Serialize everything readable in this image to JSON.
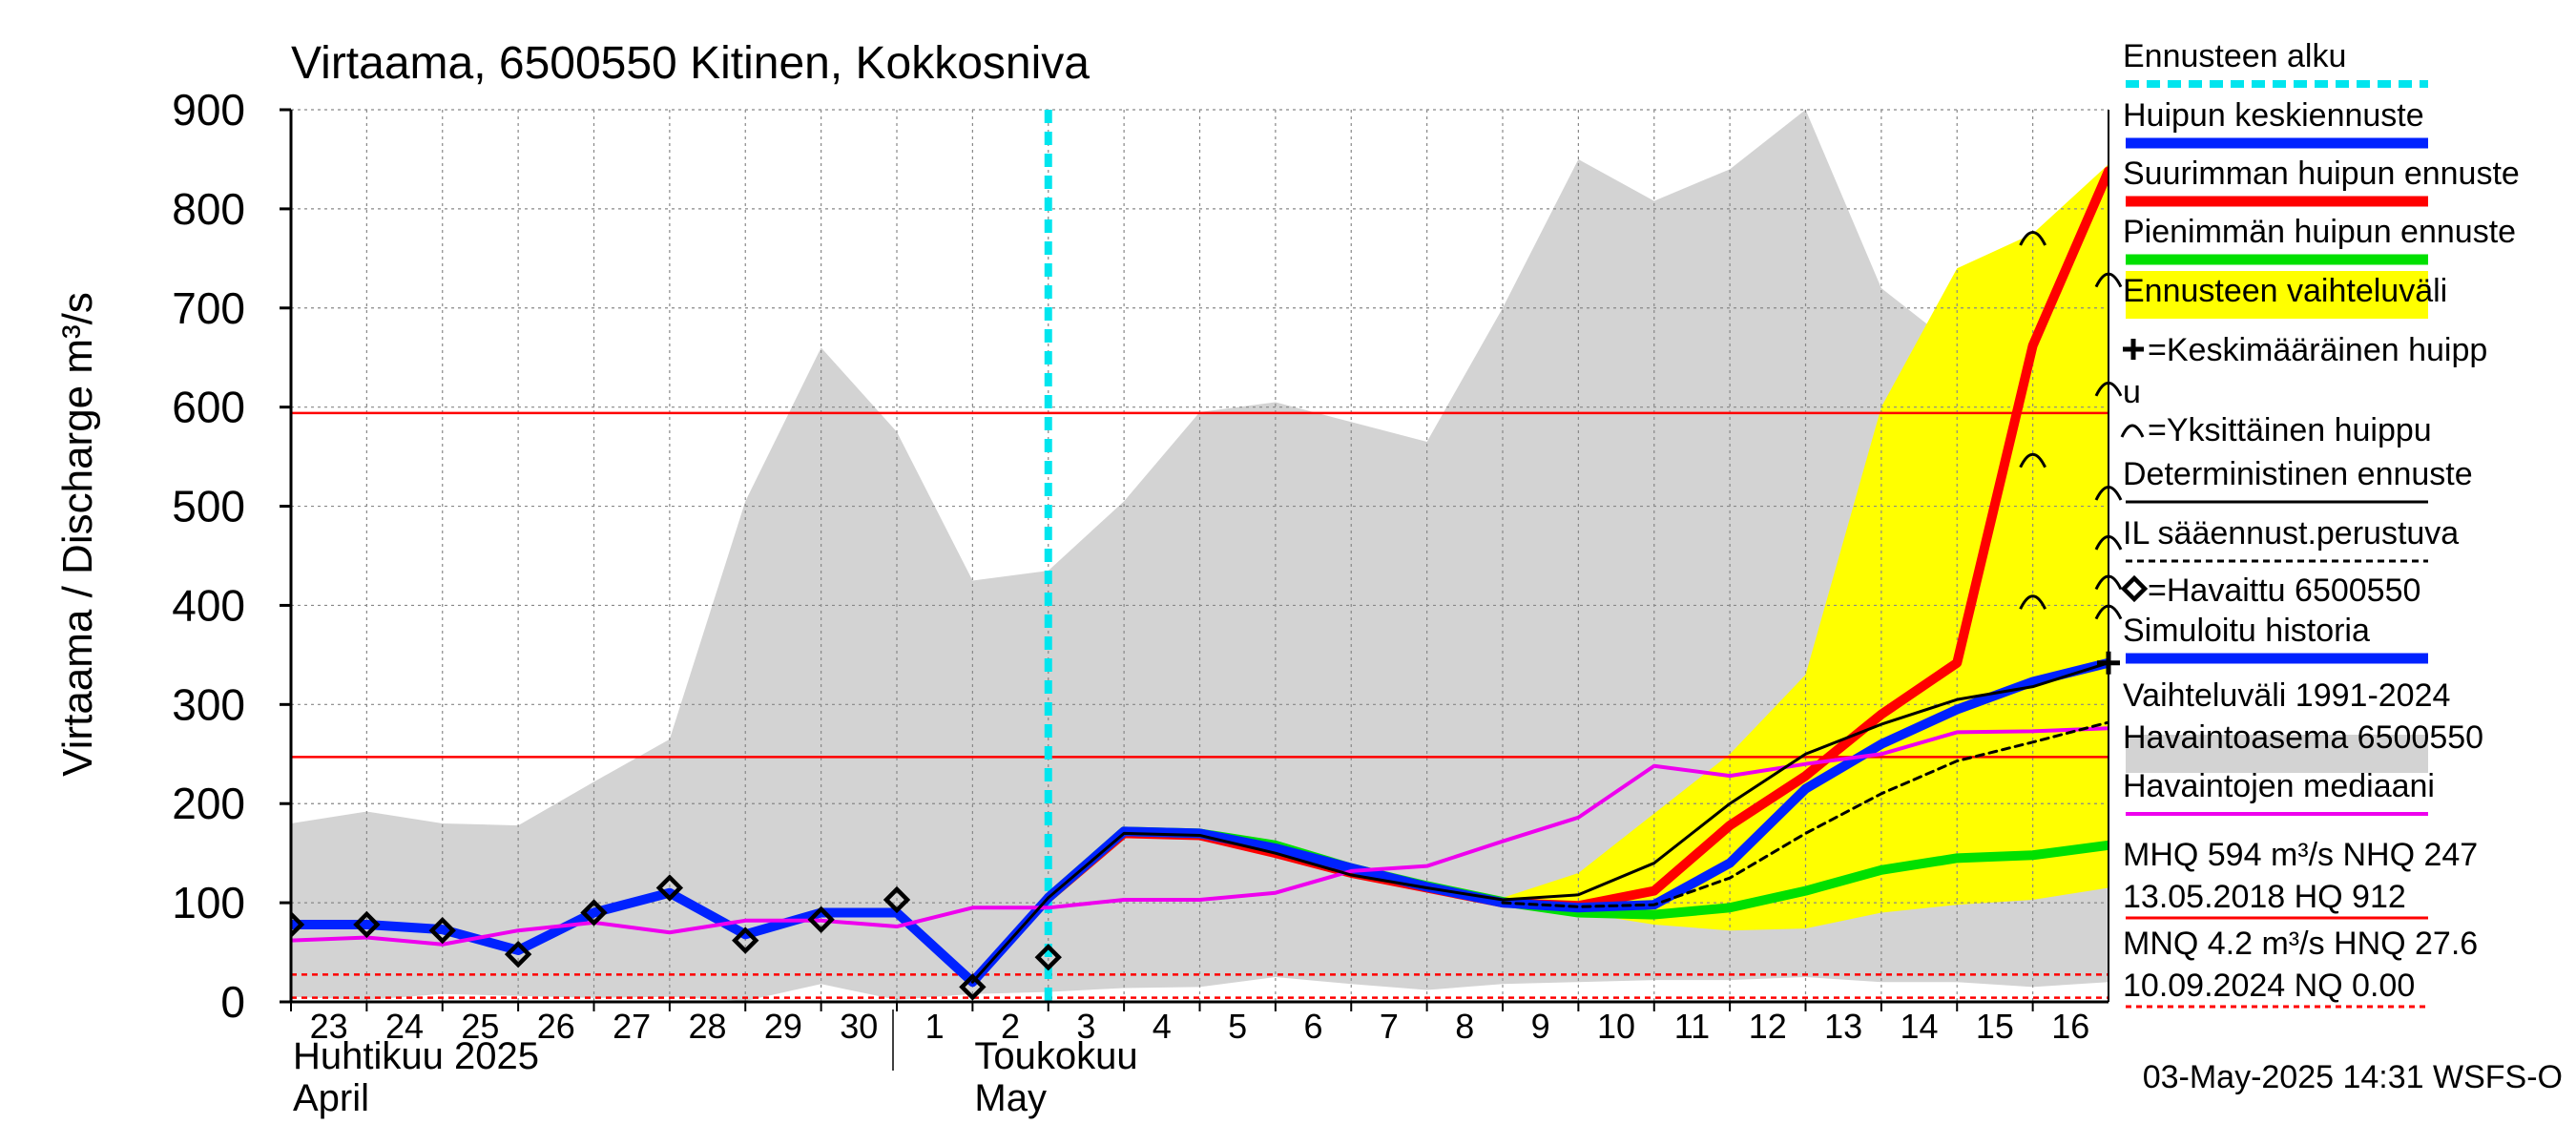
{
  "chart_data": {
    "type": "line",
    "title": "Virtaama, 6500550 Kitinen, Kokkosniva",
    "ylabel": "Virtaama / Discharge   m³/s",
    "ylim": [
      0,
      900
    ],
    "yticks": [
      0,
      100,
      200,
      300,
      400,
      500,
      600,
      700,
      800,
      900
    ],
    "xlim": [
      0,
      24
    ],
    "x_ticks": [
      {
        "x": 0,
        "label": "23"
      },
      {
        "x": 1,
        "label": "24"
      },
      {
        "x": 2,
        "label": "25"
      },
      {
        "x": 3,
        "label": "26"
      },
      {
        "x": 4,
        "label": "27"
      },
      {
        "x": 5,
        "label": "28"
      },
      {
        "x": 6,
        "label": "29"
      },
      {
        "x": 7,
        "label": "30"
      },
      {
        "x": 8,
        "label": "1"
      },
      {
        "x": 9,
        "label": "2"
      },
      {
        "x": 10,
        "label": "3"
      },
      {
        "x": 11,
        "label": "4"
      },
      {
        "x": 12,
        "label": "5"
      },
      {
        "x": 13,
        "label": "6"
      },
      {
        "x": 14,
        "label": "7"
      },
      {
        "x": 15,
        "label": "8"
      },
      {
        "x": 16,
        "label": "9"
      },
      {
        "x": 17,
        "label": "10"
      },
      {
        "x": 18,
        "label": "11"
      },
      {
        "x": 19,
        "label": "12"
      },
      {
        "x": 20,
        "label": "13"
      },
      {
        "x": 21,
        "label": "14"
      },
      {
        "x": 22,
        "label": "15"
      },
      {
        "x": 23,
        "label": "16"
      }
    ],
    "month_labels": [
      {
        "x": 0,
        "fi": "Huhtikuu  2025",
        "en": "April"
      },
      {
        "x": 9,
        "fi": "Toukokuu",
        "en": "May"
      }
    ],
    "month_divider_x": 8,
    "forecast_start_x": 10,
    "history_range": {
      "x": [
        0,
        1,
        2,
        3,
        4,
        5,
        6,
        7,
        8,
        9,
        10,
        11,
        12,
        13,
        14,
        15,
        16,
        17,
        18,
        19,
        20,
        21,
        22,
        23,
        24
      ],
      "upper": [
        180,
        192,
        180,
        178,
        222,
        265,
        505,
        660,
        575,
        425,
        435,
        505,
        595,
        605,
        585,
        565,
        700,
        850,
        808,
        840,
        900,
        720,
        660,
        660,
        740
      ],
      "lower": [
        5,
        2,
        8,
        6,
        4,
        5,
        1,
        18,
        2,
        8,
        10,
        14,
        15,
        25,
        18,
        12,
        18,
        20,
        22,
        22,
        25,
        20,
        20,
        15,
        20
      ]
    },
    "forecast_range": {
      "x": [
        16,
        17,
        18,
        19,
        20,
        21,
        22,
        23,
        24
      ],
      "upper": [
        105,
        130,
        190,
        250,
        330,
        600,
        740,
        775,
        845
      ],
      "lower": [
        100,
        90,
        78,
        72,
        74,
        90,
        98,
        103,
        115
      ]
    },
    "series": [
      {
        "name": "Suurimman huipun ennuste",
        "color": "#ff0000",
        "width": 10,
        "x": [
          10,
          11,
          12,
          13,
          14,
          15,
          16,
          17,
          18,
          19,
          20,
          21,
          22,
          23,
          24
        ],
        "y": [
          105,
          170,
          168,
          150,
          130,
          115,
          100,
          97,
          112,
          178,
          228,
          290,
          342,
          662,
          838
        ]
      },
      {
        "name": "Pienimmän huipun ennuste",
        "color": "#00e000",
        "width": 10,
        "x": [
          10,
          11,
          12,
          13,
          14,
          15,
          16,
          17,
          18,
          19,
          20,
          21,
          22,
          23,
          24
        ],
        "y": [
          105,
          172,
          170,
          158,
          135,
          117,
          101,
          90,
          88,
          95,
          112,
          133,
          145,
          148,
          158
        ]
      },
      {
        "name": "Huipun keskiennuste",
        "color": "#0022ff",
        "width": 10,
        "x": [
          0,
          1,
          2,
          3,
          4,
          5,
          6,
          7,
          8,
          9,
          10,
          11,
          12,
          13,
          14,
          15,
          16,
          17,
          18,
          19,
          20,
          21,
          22,
          23,
          24
        ],
        "y": [
          78,
          78,
          73,
          52,
          90,
          110,
          68,
          90,
          90,
          20,
          105,
          172,
          170,
          155,
          135,
          116,
          100,
          95,
          98,
          140,
          215,
          260,
          295,
          323,
          342
        ]
      },
      {
        "name": "Havaintojen mediaani",
        "color": "#ee00ee",
        "width": 4,
        "x": [
          0,
          1,
          2,
          3,
          4,
          5,
          6,
          7,
          8,
          9,
          10,
          11,
          12,
          13,
          14,
          15,
          16,
          17,
          18,
          19,
          20,
          21,
          22,
          23,
          24
        ],
        "y": [
          62,
          65,
          58,
          72,
          80,
          70,
          82,
          82,
          76,
          95,
          95,
          103,
          103,
          110,
          132,
          137,
          162,
          186,
          238,
          228,
          240,
          250,
          272,
          273,
          276
        ]
      },
      {
        "name": "Deterministinen ennuste",
        "color": "#000000",
        "width": 3,
        "x": [
          10,
          11,
          12,
          13,
          14,
          15,
          16,
          17,
          18,
          19,
          20,
          21,
          22,
          23,
          24
        ],
        "y": [
          105,
          170,
          168,
          150,
          128,
          115,
          103,
          108,
          140,
          200,
          250,
          280,
          305,
          318,
          342
        ]
      },
      {
        "name": "IL sääennust.perustuva",
        "color": "#000000",
        "width": 3,
        "dash": true,
        "x": [
          16,
          17,
          18,
          19,
          20,
          21,
          22,
          23,
          24
        ],
        "y": [
          100,
          96,
          98,
          125,
          170,
          210,
          243,
          262,
          282
        ]
      },
      {
        "name": "Ennusteen alku",
        "color": "#000000",
        "width": 3,
        "x": [
          9,
          10
        ],
        "y": [
          20,
          105
        ]
      }
    ],
    "observed": {
      "name": "Havaittu 6500550",
      "x": [
        0,
        1,
        2,
        3,
        4,
        5,
        6,
        7,
        8,
        9,
        10
      ],
      "y": [
        78,
        78,
        72,
        48,
        90,
        115,
        62,
        83,
        103,
        15,
        45
      ]
    },
    "single_peaks": {
      "x": [
        23,
        23,
        23,
        24
      ],
      "y": [
        772,
        548,
        405,
        730
      ]
    },
    "legend_side_peaks_y": [
      620,
      515,
      465,
      425,
      395
    ],
    "mean_peak": {
      "x": 24,
      "y": 342
    },
    "reference_lines": [
      {
        "name": "MHQ",
        "y": 594,
        "color": "#ff0000",
        "dash": false
      },
      {
        "name": "NHQ",
        "y": 247,
        "color": "#ff0000",
        "dash": false
      },
      {
        "name": "MNQ",
        "y": 4.2,
        "color": "#ff0000",
        "dash": true
      },
      {
        "name": "HNQ",
        "y": 27.6,
        "color": "#ff0000",
        "dash": true
      }
    ],
    "legend_placement": "right",
    "legend": [
      {
        "label": "Ennusteen alku",
        "style": "cyan-dashed"
      },
      {
        "label": "Huipun keskiennuste",
        "style": "blue-thick"
      },
      {
        "label": "Suurimman huipun ennuste",
        "style": "red-thick"
      },
      {
        "label": "Pienimmän huipun ennuste",
        "style": "green-thick"
      },
      {
        "label": "Ennusteen vaihteluväli",
        "style": "yellow-band"
      },
      {
        "label": "=Keskimääräinen huipp",
        "label2": "u",
        "style": "plus-marker"
      },
      {
        "label": "=Yksittäinen huippu",
        "style": "arc-marker"
      },
      {
        "label": "Deterministinen ennuste",
        "style": "black-line"
      },
      {
        "label": "IL sääennust.perustuva",
        "style": "black-dashed"
      },
      {
        "label": "=Havaittu 6500550",
        "style": "diamond-marker"
      },
      {
        "label": "Simuloitu historia",
        "style": "blue-thick"
      },
      {
        "label": "Vaihteluväli 1991-2024",
        "label2": " Havaintoasema 6500550",
        "style": "grey-band"
      },
      {
        "label": "Havaintojen mediaani",
        "style": "magenta-line"
      },
      {
        "label": "MHQ  594 m³/s NHQ  247",
        "label2": "13.05.2018 HQ  912",
        "style": "red-line"
      },
      {
        "label": "MNQ  4.2 m³/s HNQ 27.6",
        "label2": "10.09.2024 NQ 0.00",
        "style": "red-dashed"
      }
    ],
    "footer": "03-May-2025 14:31 WSFS-O",
    "colors": {
      "history_band": "#d3d3d3",
      "forecast_band": "#ffff00",
      "forecast_start": "#00e5ee",
      "grid": "#888888",
      "reference": "#ff0000"
    }
  }
}
